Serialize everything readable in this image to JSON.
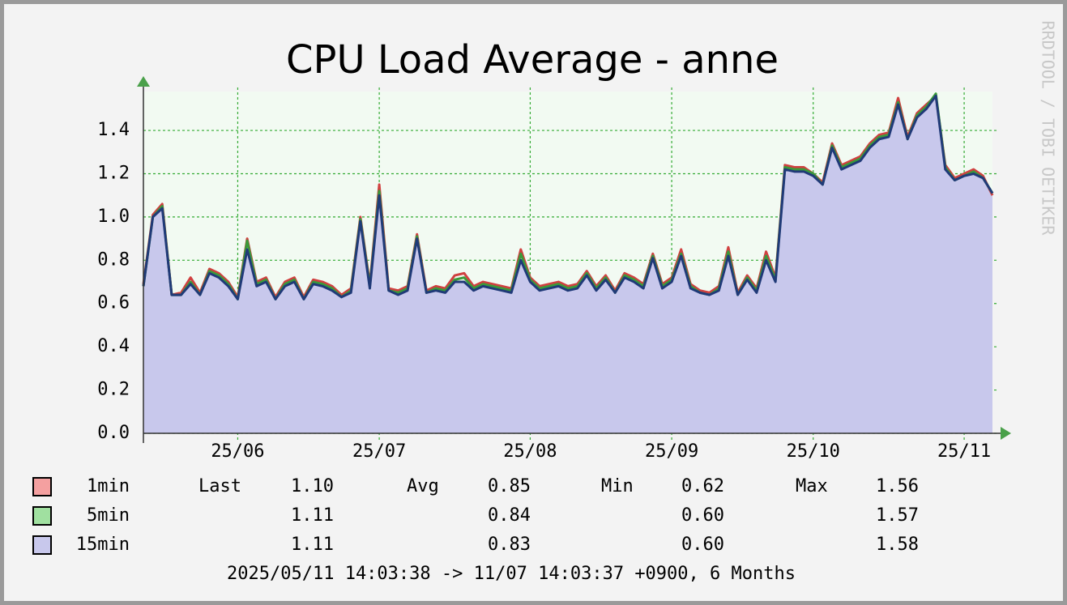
{
  "chart_data": {
    "type": "line",
    "title": "CPU Load Average - anne",
    "watermark": "RRDTOOL / TOBI OETIKER",
    "footer": "2025/05/11 14:03:38 -> 11/07 14:03:37 +0900, 6 Months",
    "categories": [
      null,
      null,
      null,
      null,
      null,
      null,
      null,
      null,
      null,
      null,
      "25/06",
      null,
      null,
      null,
      null,
      null,
      null,
      null,
      null,
      null,
      null,
      null,
      null,
      null,
      null,
      "25/07",
      null,
      null,
      null,
      null,
      null,
      null,
      null,
      null,
      null,
      null,
      null,
      null,
      null,
      null,
      null,
      "25/08",
      null,
      null,
      null,
      null,
      null,
      null,
      null,
      null,
      null,
      null,
      null,
      null,
      null,
      null,
      "25/09",
      null,
      null,
      null,
      null,
      null,
      null,
      null,
      null,
      null,
      null,
      null,
      null,
      null,
      null,
      "25/10",
      null,
      null,
      null,
      null,
      null,
      null,
      null,
      null,
      null,
      null,
      null,
      null,
      null,
      null,
      null,
      "25/11",
      null,
      null,
      null
    ],
    "ylim": [
      0,
      1.58
    ],
    "yticks": [
      {
        "value": 0,
        "label": "0.0"
      },
      0.2,
      0.4,
      0.6,
      0.8,
      {
        "value": 1,
        "label": "1.0"
      },
      1.2,
      1.4
    ],
    "grid": true,
    "area_color": "#c8c8ec",
    "stat_headers": [
      "Last",
      "Avg",
      "Min",
      "Max"
    ],
    "series": [
      {
        "name": "1min",
        "color": "#d04040",
        "legend_color": "#f4a0a0",
        "stats": [
          "1.10",
          "0.85",
          "0.62",
          "1.56"
        ],
        "values": [
          0.69,
          1.01,
          1.06,
          0.64,
          0.65,
          0.72,
          0.65,
          0.76,
          0.74,
          0.7,
          0.63,
          0.9,
          0.7,
          0.72,
          0.63,
          0.7,
          0.72,
          0.63,
          0.71,
          0.7,
          0.68,
          0.64,
          0.67,
          1.0,
          0.69,
          1.15,
          0.67,
          0.66,
          0.68,
          0.92,
          0.66,
          0.68,
          0.67,
          0.73,
          0.74,
          0.68,
          0.7,
          0.69,
          0.68,
          0.67,
          0.85,
          0.72,
          0.68,
          0.69,
          0.7,
          0.68,
          0.69,
          0.75,
          0.68,
          0.73,
          0.66,
          0.74,
          0.72,
          0.69,
          0.83,
          0.69,
          0.72,
          0.85,
          0.69,
          0.66,
          0.65,
          0.68,
          0.86,
          0.65,
          0.73,
          0.67,
          0.84,
          0.72,
          1.24,
          1.23,
          1.23,
          1.2,
          1.16,
          1.34,
          1.24,
          1.26,
          1.28,
          1.34,
          1.38,
          1.39,
          1.55,
          1.37,
          1.48,
          1.52,
          1.56,
          1.24,
          1.18,
          1.2,
          1.22,
          1.19,
          1.1
        ]
      },
      {
        "name": "5min",
        "color": "#3a9a3a",
        "legend_color": "#a0e0a0",
        "stats": [
          "1.11",
          "0.84",
          "0.60",
          "1.57"
        ],
        "values": [
          0.68,
          1.0,
          1.05,
          0.64,
          0.64,
          0.7,
          0.64,
          0.75,
          0.73,
          0.69,
          0.62,
          0.89,
          0.69,
          0.71,
          0.62,
          0.69,
          0.71,
          0.62,
          0.7,
          0.69,
          0.67,
          0.63,
          0.66,
          0.99,
          0.68,
          1.12,
          0.66,
          0.65,
          0.67,
          0.91,
          0.65,
          0.67,
          0.66,
          0.71,
          0.72,
          0.67,
          0.69,
          0.68,
          0.67,
          0.66,
          0.83,
          0.71,
          0.67,
          0.68,
          0.69,
          0.67,
          0.68,
          0.74,
          0.67,
          0.72,
          0.65,
          0.73,
          0.71,
          0.68,
          0.82,
          0.68,
          0.71,
          0.83,
          0.68,
          0.65,
          0.64,
          0.67,
          0.84,
          0.64,
          0.72,
          0.66,
          0.82,
          0.71,
          1.23,
          1.22,
          1.22,
          1.2,
          1.15,
          1.33,
          1.23,
          1.25,
          1.27,
          1.33,
          1.37,
          1.38,
          1.53,
          1.36,
          1.47,
          1.51,
          1.57,
          1.23,
          1.17,
          1.19,
          1.21,
          1.18,
          1.11
        ]
      },
      {
        "name": "15min",
        "color": "#203a78",
        "legend_color": "#c8c8ec",
        "stats": [
          "1.11",
          "0.83",
          "0.60",
          "1.58"
        ],
        "values": [
          0.68,
          1.0,
          1.04,
          0.64,
          0.64,
          0.69,
          0.64,
          0.74,
          0.72,
          0.68,
          0.62,
          0.85,
          0.68,
          0.7,
          0.62,
          0.68,
          0.7,
          0.62,
          0.69,
          0.68,
          0.66,
          0.63,
          0.65,
          0.98,
          0.67,
          1.1,
          0.66,
          0.64,
          0.66,
          0.9,
          0.65,
          0.66,
          0.65,
          0.7,
          0.7,
          0.66,
          0.68,
          0.67,
          0.66,
          0.65,
          0.8,
          0.7,
          0.66,
          0.67,
          0.68,
          0.66,
          0.67,
          0.73,
          0.66,
          0.71,
          0.65,
          0.72,
          0.7,
          0.67,
          0.81,
          0.67,
          0.7,
          0.82,
          0.67,
          0.65,
          0.64,
          0.66,
          0.82,
          0.64,
          0.71,
          0.65,
          0.8,
          0.7,
          1.22,
          1.21,
          1.21,
          1.19,
          1.15,
          1.32,
          1.22,
          1.24,
          1.26,
          1.32,
          1.36,
          1.37,
          1.52,
          1.36,
          1.46,
          1.5,
          1.56,
          1.22,
          1.17,
          1.19,
          1.2,
          1.18,
          1.11
        ]
      }
    ]
  }
}
